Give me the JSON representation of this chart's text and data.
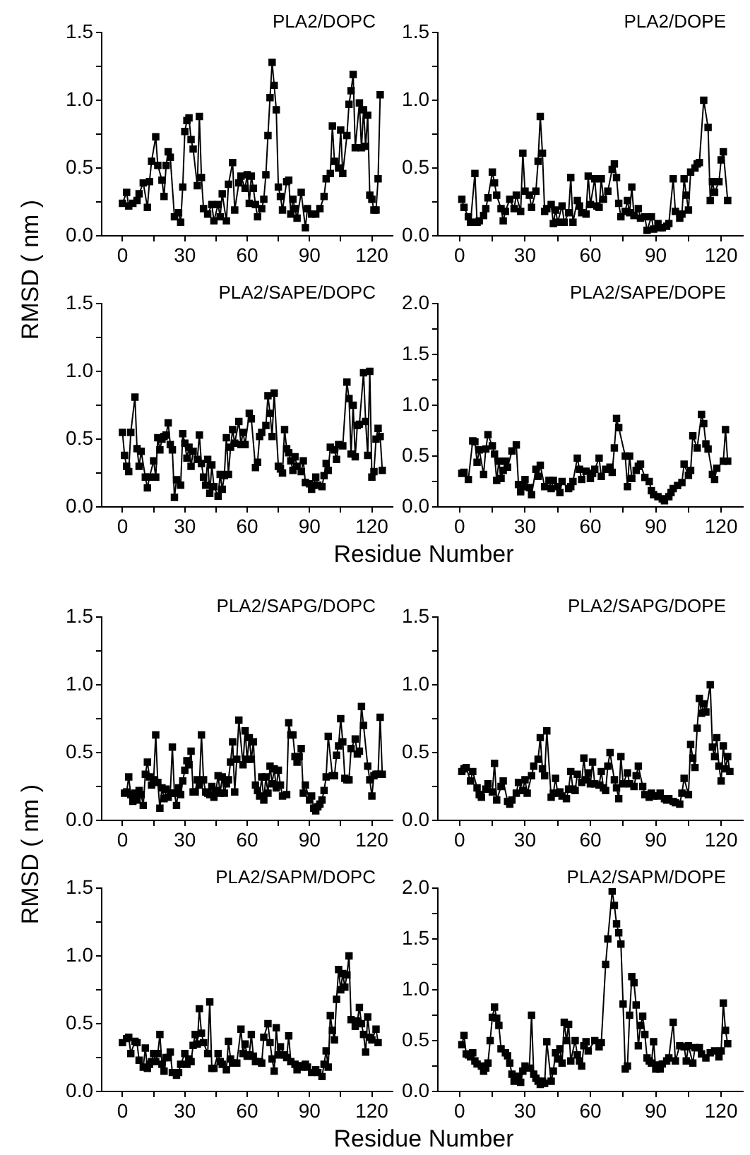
{
  "chart_data": [
    {
      "type": "line",
      "title": "PLA2/DOPC",
      "ylabel": "RMSD ( nm )",
      "color": "#000000",
      "marker": "square",
      "xlim": [
        -10,
        130
      ],
      "ylim": [
        0,
        1.5
      ],
      "xticks": [
        0,
        {
          "value": 15,
          "label": null
        },
        30,
        {
          "value": 45,
          "label": null
        },
        60,
        {
          "value": 75,
          "label": null
        },
        90,
        {
          "value": 105,
          "label": null
        },
        120
      ],
      "yticks": [
        {
          "value": 0,
          "label": "0.0"
        },
        {
          "value": 0.25,
          "label": null
        },
        {
          "value": 0.5,
          "label": "0.5"
        },
        {
          "value": 0.75,
          "label": null
        },
        {
          "value": 1,
          "label": "1.0"
        },
        {
          "value": 1.25,
          "label": null
        },
        {
          "value": 1.5,
          "label": "1.5"
        }
      ],
      "x": [
        0,
        2,
        3,
        5,
        7,
        8,
        10,
        12,
        13,
        14,
        16,
        17,
        19,
        20,
        21,
        22,
        23,
        25,
        27,
        28,
        29,
        30,
        31,
        32,
        33,
        34,
        36,
        37,
        38,
        39,
        41,
        43,
        44,
        46,
        47,
        48,
        50,
        51,
        53,
        54,
        56,
        57,
        59,
        60,
        61,
        62,
        63,
        64,
        65,
        67,
        68,
        69,
        70,
        71,
        72,
        73,
        74,
        75,
        76,
        77,
        79,
        80,
        81,
        82,
        83,
        84,
        86,
        88,
        89,
        91,
        93,
        95,
        97,
        98,
        100,
        101,
        102,
        104,
        105,
        106,
        108,
        109,
        110,
        111,
        112,
        114,
        115,
        116,
        117,
        118,
        119,
        120,
        121,
        122,
        123,
        124
      ],
      "values": [
        0.24,
        0.32,
        0.22,
        0.24,
        0.26,
        0.31,
        0.39,
        0.21,
        0.4,
        0.55,
        0.73,
        0.52,
        0.41,
        0.29,
        0.52,
        0.62,
        0.58,
        0.14,
        0.17,
        0.1,
        0.36,
        0.77,
        0.85,
        0.87,
        0.71,
        0.64,
        0.37,
        0.88,
        0.43,
        0.2,
        0.16,
        0.23,
        0.11,
        0.23,
        0.14,
        0.31,
        0.11,
        0.38,
        0.54,
        0.19,
        0.39,
        0.44,
        0.35,
        0.45,
        0.24,
        0.44,
        0.35,
        0.23,
        0.14,
        0.2,
        0.27,
        0.45,
        0.74,
        1.02,
        1.28,
        1.11,
        0.93,
        0.36,
        0.29,
        0.19,
        0.4,
        0.41,
        0.16,
        0.27,
        0.2,
        0.13,
        0.32,
        0.06,
        0.2,
        0.16,
        0.16,
        0.2,
        0.29,
        0.42,
        0.46,
        0.81,
        0.55,
        0.5,
        0.78,
        0.46,
        0.74,
        0.97,
        1.07,
        1.19,
        0.65,
        0.98,
        0.65,
        0.93,
        0.66,
        0.89,
        0.3,
        0.27,
        0.19,
        0.19,
        0.42,
        1.04
      ]
    },
    {
      "type": "line",
      "title": "PLA2/DOPE",
      "color": "#000000",
      "marker": "square",
      "xlim": [
        -10,
        130
      ],
      "ylim": [
        0,
        1.5
      ],
      "xticks": [
        0,
        {
          "value": 15,
          "label": null
        },
        30,
        {
          "value": 45,
          "label": null
        },
        60,
        {
          "value": 75,
          "label": null
        },
        90,
        {
          "value": 105,
          "label": null
        },
        120
      ],
      "yticks": [
        {
          "value": 0,
          "label": "0.0"
        },
        {
          "value": 0.25,
          "label": null
        },
        {
          "value": 0.5,
          "label": "0.5"
        },
        {
          "value": 0.75,
          "label": null
        },
        {
          "value": 1,
          "label": "1.0"
        },
        {
          "value": 1.25,
          "label": null
        },
        {
          "value": 1.5,
          "label": "1.5"
        }
      ],
      "x": [
        1,
        2,
        4,
        5,
        7,
        8,
        9,
        11,
        12,
        13,
        15,
        16,
        17,
        19,
        20,
        21,
        23,
        25,
        26,
        28,
        29,
        30,
        32,
        33,
        35,
        36,
        37,
        38,
        39,
        40,
        42,
        43,
        44,
        45,
        47,
        48,
        50,
        51,
        52,
        54,
        55,
        56,
        58,
        59,
        60,
        62,
        63,
        64,
        65,
        66,
        68,
        70,
        71,
        72,
        73,
        74,
        76,
        77,
        78,
        79,
        80,
        82,
        83,
        85,
        86,
        88,
        89,
        91,
        92,
        93,
        95,
        96,
        98,
        99,
        101,
        102,
        103,
        104,
        105,
        106,
        108,
        109,
        110,
        112,
        114,
        115,
        116,
        117,
        119,
        120,
        121,
        123
      ],
      "values": [
        0.27,
        0.21,
        0.14,
        0.1,
        0.46,
        0.1,
        0.11,
        0.15,
        0.2,
        0.28,
        0.47,
        0.39,
        0.3,
        0.2,
        0.11,
        0.18,
        0.27,
        0.2,
        0.3,
        0.18,
        0.61,
        0.33,
        0.3,
        0.21,
        0.33,
        0.55,
        0.88,
        0.61,
        0.18,
        0.2,
        0.23,
        0.09,
        0.19,
        0.1,
        0.22,
        0.1,
        0.17,
        0.43,
        0.1,
        0.26,
        0.22,
        0.17,
        0.16,
        0.44,
        0.23,
        0.42,
        0.22,
        0.21,
        0.42,
        0.27,
        0.33,
        0.49,
        0.53,
        0.43,
        0.24,
        0.14,
        0.18,
        0.26,
        0.17,
        0.36,
        0.15,
        0.2,
        0.13,
        0.14,
        0.04,
        0.14,
        0.05,
        0.09,
        0.06,
        0.06,
        0.07,
        0.09,
        0.42,
        0.18,
        0.13,
        0.16,
        0.42,
        0.3,
        0.19,
        0.47,
        0.5,
        0.53,
        0.54,
        1.0,
        0.8,
        0.26,
        0.4,
        0.32,
        0.4,
        0.56,
        0.62,
        0.26
      ]
    },
    {
      "type": "line",
      "title": "PLA2/SAPE/DOPC",
      "xlabel": "Residue Number",
      "color": "#000000",
      "marker": "square",
      "xlim": [
        -10,
        130
      ],
      "ylim": [
        0,
        1.5
      ],
      "xticks": [
        0,
        {
          "value": 15,
          "label": null
        },
        30,
        {
          "value": 45,
          "label": null
        },
        60,
        {
          "value": 75,
          "label": null
        },
        90,
        {
          "value": 105,
          "label": null
        },
        120
      ],
      "yticks": [
        {
          "value": 0,
          "label": "0.0"
        },
        {
          "value": 0.25,
          "label": null
        },
        {
          "value": 0.5,
          "label": "0.5"
        },
        {
          "value": 0.75,
          "label": null
        },
        {
          "value": 1,
          "label": "1.0"
        },
        {
          "value": 1.25,
          "label": null
        },
        {
          "value": 1.5,
          "label": "1.5"
        }
      ],
      "x": [
        0,
        1,
        2,
        3,
        4,
        6,
        7,
        8,
        9,
        11,
        12,
        13,
        15,
        16,
        17,
        18,
        19,
        20,
        21,
        22,
        23,
        24,
        25,
        26,
        28,
        29,
        30,
        31,
        32,
        33,
        34,
        36,
        37,
        38,
        39,
        40,
        41,
        42,
        43,
        44,
        46,
        47,
        48,
        49,
        50,
        51,
        52,
        53,
        54,
        56,
        57,
        58,
        59,
        61,
        62,
        64,
        65,
        66,
        67,
        69,
        70,
        71,
        72,
        73,
        75,
        76,
        77,
        78,
        79,
        80,
        81,
        82,
        83,
        84,
        86,
        87,
        88,
        90,
        91,
        92,
        93,
        94,
        96,
        97,
        98,
        99,
        100,
        102,
        103,
        104,
        106,
        108,
        109,
        110,
        111,
        112,
        113,
        114,
        116,
        117,
        118,
        119,
        120,
        121,
        122,
        123,
        124,
        125
      ],
      "values": [
        0.55,
        0.38,
        0.3,
        0.26,
        0.55,
        0.81,
        0.43,
        0.3,
        0.41,
        0.22,
        0.14,
        0.22,
        0.34,
        0.22,
        0.51,
        0.42,
        0.5,
        0.52,
        0.53,
        0.62,
        0.46,
        0.42,
        0.07,
        0.2,
        0.16,
        0.54,
        0.47,
        0.36,
        0.44,
        0.3,
        0.41,
        0.35,
        0.53,
        0.32,
        0.22,
        0.16,
        0.35,
        0.1,
        0.31,
        0.15,
        0.08,
        0.24,
        0.13,
        0.23,
        0.51,
        0.24,
        0.44,
        0.57,
        0.47,
        0.63,
        0.46,
        0.55,
        0.46,
        0.69,
        0.65,
        0.29,
        0.33,
        0.52,
        0.55,
        0.6,
        0.82,
        0.69,
        0.52,
        0.84,
        0.3,
        0.28,
        0.25,
        0.57,
        0.43,
        0.4,
        0.34,
        0.27,
        0.37,
        0.3,
        0.26,
        0.34,
        0.18,
        0.17,
        0.13,
        0.16,
        0.22,
        0.16,
        0.15,
        0.23,
        0.32,
        0.27,
        0.44,
        0.42,
        0.35,
        0.46,
        0.45,
        0.92,
        0.8,
        0.39,
        0.75,
        0.37,
        0.6,
        0.61,
        0.99,
        0.63,
        0.38,
        1.0,
        0.22,
        0.26,
        0.5,
        0.58,
        0.52,
        0.27
      ]
    },
    {
      "type": "line",
      "title": "PLA2/SAPE/DOPE",
      "color": "#000000",
      "marker": "square",
      "xlim": [
        -10,
        130
      ],
      "ylim": [
        0,
        2
      ],
      "xticks": [
        0,
        {
          "value": 15,
          "label": null
        },
        30,
        {
          "value": 45,
          "label": null
        },
        60,
        {
          "value": 75,
          "label": null
        },
        90,
        {
          "value": 105,
          "label": null
        },
        120
      ],
      "yticks": [
        {
          "value": 0,
          "label": "0.0"
        },
        {
          "value": 0.25,
          "label": null
        },
        {
          "value": 0.5,
          "label": "0.5"
        },
        {
          "value": 0.75,
          "label": null
        },
        {
          "value": 1,
          "label": "1.0"
        },
        {
          "value": 1.25,
          "label": null
        },
        {
          "value": 1.5,
          "label": "1.5"
        },
        {
          "value": 1.75,
          "label": null
        },
        {
          "value": 2,
          "label": "2.0"
        }
      ],
      "x": [
        1,
        2,
        4,
        6,
        7,
        8,
        9,
        11,
        12,
        13,
        15,
        16,
        17,
        18,
        19,
        20,
        21,
        22,
        24,
        26,
        27,
        28,
        29,
        30,
        32,
        33,
        35,
        36,
        37,
        39,
        41,
        42,
        43,
        45,
        46,
        47,
        50,
        51,
        52,
        54,
        55,
        56,
        58,
        60,
        61,
        62,
        64,
        65,
        67,
        69,
        70,
        71,
        72,
        73,
        76,
        77,
        78,
        79,
        81,
        82,
        83,
        85,
        87,
        88,
        89,
        91,
        93,
        94,
        96,
        97,
        98,
        100,
        102,
        103,
        105,
        106,
        107,
        109,
        111,
        112,
        113,
        114,
        116,
        117,
        118,
        121,
        122,
        123
      ],
      "values": [
        0.33,
        0.34,
        0.27,
        0.65,
        0.64,
        0.44,
        0.56,
        0.32,
        0.57,
        0.71,
        0.6,
        0.52,
        0.26,
        0.45,
        0.28,
        0.36,
        0.45,
        0.39,
        0.55,
        0.61,
        0.22,
        0.15,
        0.2,
        0.27,
        0.19,
        0.12,
        0.37,
        0.3,
        0.41,
        0.2,
        0.26,
        0.18,
        0.26,
        0.2,
        0.14,
        0.25,
        0.18,
        0.2,
        0.25,
        0.48,
        0.37,
        0.27,
        0.35,
        0.28,
        0.33,
        0.37,
        0.48,
        0.3,
        0.37,
        0.39,
        0.34,
        0.58,
        0.87,
        0.78,
        0.5,
        0.2,
        0.5,
        0.28,
        0.36,
        0.4,
        0.42,
        0.29,
        0.25,
        0.16,
        0.12,
        0.1,
        0.08,
        0.06,
        0.1,
        0.14,
        0.18,
        0.21,
        0.24,
        0.42,
        0.31,
        0.36,
        0.7,
        0.58,
        0.91,
        0.82,
        0.62,
        0.57,
        0.32,
        0.27,
        0.38,
        0.45,
        0.76,
        0.45
      ]
    },
    {
      "type": "line",
      "title": "PLA2/SAPG/DOPC",
      "ylabel": "RMSD ( nm )",
      "color": "#000000",
      "marker": "square",
      "xlim": [
        -10,
        130
      ],
      "ylim": [
        0,
        1.5
      ],
      "xticks": [
        0,
        {
          "value": 15,
          "label": null
        },
        30,
        {
          "value": 45,
          "label": null
        },
        60,
        {
          "value": 75,
          "label": null
        },
        90,
        {
          "value": 105,
          "label": null
        },
        120
      ],
      "yticks": [
        {
          "value": 0,
          "label": "0.0"
        },
        {
          "value": 0.25,
          "label": null
        },
        {
          "value": 0.5,
          "label": "0.5"
        },
        {
          "value": 0.75,
          "label": null
        },
        {
          "value": 1,
          "label": "1.0"
        },
        {
          "value": 1.25,
          "label": null
        },
        {
          "value": 1.5,
          "label": "1.5"
        }
      ],
      "x": [
        1,
        2,
        3,
        4,
        5,
        6,
        7,
        8,
        9,
        10,
        11,
        12,
        13,
        14,
        15,
        16,
        17,
        18,
        19,
        20,
        21,
        22,
        23,
        24,
        25,
        26,
        27,
        28,
        29,
        30,
        31,
        32,
        33,
        34,
        35,
        36,
        37,
        38,
        39,
        40,
        41,
        42,
        43,
        44,
        45,
        46,
        47,
        48,
        49,
        50,
        51,
        52,
        53,
        54,
        55,
        56,
        58,
        59,
        60,
        61,
        62,
        63,
        64,
        65,
        66,
        67,
        68,
        69,
        70,
        71,
        72,
        73,
        74,
        75,
        76,
        77,
        79,
        80,
        81,
        82,
        83,
        84,
        85,
        86,
        87,
        88,
        90,
        91,
        92,
        93,
        94,
        95,
        96,
        97,
        98,
        99,
        101,
        102,
        103,
        104,
        105,
        106,
        107,
        108,
        109,
        110,
        112,
        113,
        114,
        115,
        116,
        118,
        119,
        120,
        121,
        122,
        123,
        124,
        125
      ],
      "values": [
        0.2,
        0.21,
        0.32,
        0.19,
        0.14,
        0.2,
        0.15,
        0.22,
        0.19,
        0.11,
        0.34,
        0.43,
        0.32,
        0.26,
        0.3,
        0.63,
        0.28,
        0.09,
        0.24,
        0.16,
        0.23,
        0.17,
        0.2,
        0.54,
        0.2,
        0.11,
        0.24,
        0.19,
        0.29,
        0.37,
        0.44,
        0.41,
        0.51,
        0.21,
        0.21,
        0.3,
        0.26,
        0.63,
        0.3,
        0.21,
        0.2,
        0.19,
        0.25,
        0.17,
        0.22,
        0.33,
        0.2,
        0.32,
        0.2,
        0.27,
        0.3,
        0.43,
        0.58,
        0.21,
        0.45,
        0.74,
        0.41,
        0.66,
        0.45,
        0.61,
        0.45,
        0.58,
        0.26,
        0.22,
        0.18,
        0.32,
        0.15,
        0.32,
        0.2,
        0.4,
        0.27,
        0.38,
        0.24,
        0.37,
        0.26,
        0.18,
        0.19,
        0.72,
        0.63,
        0.63,
        0.47,
        0.43,
        0.47,
        0.53,
        0.2,
        0.26,
        0.15,
        0.18,
        0.09,
        0.07,
        0.1,
        0.12,
        0.15,
        0.22,
        0.32,
        0.62,
        0.33,
        0.33,
        0.48,
        0.55,
        0.75,
        0.58,
        0.31,
        0.3,
        0.3,
        0.53,
        0.6,
        0.49,
        0.51,
        0.84,
        0.7,
        0.4,
        0.3,
        0.18,
        0.33,
        0.34,
        0.34,
        0.76,
        0.34
      ]
    },
    {
      "type": "line",
      "title": "PLA2/SAPG/DOPE",
      "color": "#000000",
      "marker": "square",
      "xlim": [
        -10,
        130
      ],
      "ylim": [
        0,
        1.5
      ],
      "xticks": [
        0,
        {
          "value": 15,
          "label": null
        },
        30,
        {
          "value": 45,
          "label": null
        },
        60,
        {
          "value": 75,
          "label": null
        },
        90,
        {
          "value": 105,
          "label": null
        },
        120
      ],
      "yticks": [
        {
          "value": 0,
          "label": "0.0"
        },
        {
          "value": 0.25,
          "label": null
        },
        {
          "value": 0.5,
          "label": "0.5"
        },
        {
          "value": 0.75,
          "label": null
        },
        {
          "value": 1,
          "label": "1.0"
        },
        {
          "value": 1.25,
          "label": null
        },
        {
          "value": 1.5,
          "label": "1.5"
        }
      ],
      "x": [
        1,
        2,
        3,
        5,
        6,
        8,
        9,
        10,
        12,
        13,
        15,
        16,
        17,
        19,
        20,
        22,
        23,
        24,
        26,
        27,
        29,
        30,
        31,
        33,
        34,
        36,
        37,
        38,
        39,
        40,
        42,
        43,
        44,
        45,
        46,
        47,
        49,
        50,
        51,
        52,
        53,
        54,
        56,
        57,
        58,
        59,
        60,
        61,
        62,
        64,
        65,
        66,
        67,
        68,
        69,
        71,
        72,
        73,
        74,
        75,
        77,
        78,
        80,
        81,
        82,
        84,
        85,
        87,
        88,
        89,
        91,
        92,
        94,
        95,
        96,
        98,
        99,
        101,
        102,
        103,
        105,
        106,
        107,
        108,
        109,
        110,
        111,
        112,
        113,
        115,
        116,
        117,
        118,
        119,
        120,
        121,
        122,
        123,
        124
      ],
      "values": [
        0.36,
        0.38,
        0.39,
        0.29,
        0.36,
        0.24,
        0.19,
        0.17,
        0.23,
        0.27,
        0.21,
        0.42,
        0.15,
        0.25,
        0.29,
        0.14,
        0.12,
        0.15,
        0.2,
        0.28,
        0.22,
        0.3,
        0.2,
        0.33,
        0.4,
        0.45,
        0.61,
        0.38,
        0.33,
        0.66,
        0.17,
        0.2,
        0.31,
        0.2,
        0.21,
        0.18,
        0.16,
        0.23,
        0.36,
        0.23,
        0.22,
        0.34,
        0.28,
        0.46,
        0.3,
        0.35,
        0.27,
        0.43,
        0.27,
        0.26,
        0.36,
        0.24,
        0.22,
        0.4,
        0.5,
        0.3,
        0.24,
        0.16,
        0.47,
        0.27,
        0.35,
        0.27,
        0.25,
        0.33,
        0.4,
        0.25,
        0.19,
        0.17,
        0.2,
        0.18,
        0.18,
        0.2,
        0.16,
        0.15,
        0.16,
        0.14,
        0.13,
        0.12,
        0.2,
        0.31,
        0.19,
        0.56,
        0.46,
        0.39,
        0.68,
        0.9,
        0.79,
        0.86,
        0.8,
        1.0,
        0.54,
        0.47,
        0.61,
        0.4,
        0.29,
        0.55,
        0.38,
        0.47,
        0.36
      ]
    },
    {
      "type": "line",
      "title": "PLA2/SAPM/DOPC",
      "xlabel": "Residue Number",
      "color": "#000000",
      "marker": "square",
      "xlim": [
        -10,
        130
      ],
      "ylim": [
        0,
        1.5
      ],
      "xticks": [
        0,
        {
          "value": 15,
          "label": null
        },
        30,
        {
          "value": 45,
          "label": null
        },
        60,
        {
          "value": 75,
          "label": null
        },
        90,
        {
          "value": 105,
          "label": null
        },
        120
      ],
      "yticks": [
        {
          "value": 0,
          "label": "0.0"
        },
        {
          "value": 0.25,
          "label": null
        },
        {
          "value": 0.5,
          "label": "0.5"
        },
        {
          "value": 0.75,
          "label": null
        },
        {
          "value": 1,
          "label": "1.0"
        },
        {
          "value": 1.25,
          "label": null
        },
        {
          "value": 1.5,
          "label": "1.5"
        }
      ],
      "x": [
        0,
        2,
        3,
        4,
        6,
        7,
        8,
        10,
        11,
        12,
        13,
        14,
        15,
        16,
        17,
        18,
        19,
        20,
        21,
        22,
        23,
        24,
        26,
        27,
        28,
        30,
        31,
        32,
        33,
        34,
        35,
        36,
        37,
        38,
        39,
        41,
        42,
        43,
        44,
        46,
        47,
        48,
        50,
        51,
        52,
        53,
        55,
        57,
        58,
        59,
        60,
        61,
        62,
        63,
        64,
        66,
        67,
        68,
        70,
        71,
        72,
        73,
        74,
        75,
        76,
        78,
        79,
        80,
        81,
        83,
        84,
        85,
        86,
        88,
        89,
        91,
        93,
        94,
        96,
        97,
        98,
        99,
        100,
        101,
        102,
        103,
        104,
        105,
        106,
        107,
        108,
        109,
        110,
        112,
        113,
        114,
        115,
        116,
        117,
        118,
        119,
        120,
        122,
        123
      ],
      "values": [
        0.36,
        0.39,
        0.4,
        0.28,
        0.37,
        0.36,
        0.23,
        0.18,
        0.32,
        0.17,
        0.2,
        0.22,
        0.28,
        0.22,
        0.28,
        0.42,
        0.2,
        0.15,
        0.25,
        0.25,
        0.29,
        0.14,
        0.12,
        0.14,
        0.2,
        0.28,
        0.2,
        0.24,
        0.22,
        0.34,
        0.42,
        0.35,
        0.61,
        0.43,
        0.36,
        0.28,
        0.66,
        0.17,
        0.17,
        0.28,
        0.22,
        0.2,
        0.16,
        0.37,
        0.24,
        0.21,
        0.21,
        0.46,
        0.28,
        0.35,
        0.26,
        0.27,
        0.42,
        0.26,
        0.22,
        0.22,
        0.21,
        0.4,
        0.5,
        0.36,
        0.24,
        0.15,
        0.47,
        0.27,
        0.33,
        0.27,
        0.25,
        0.41,
        0.22,
        0.2,
        0.16,
        0.19,
        0.18,
        0.2,
        0.18,
        0.14,
        0.16,
        0.14,
        0.11,
        0.2,
        0.3,
        0.18,
        0.56,
        0.45,
        0.38,
        0.68,
        0.9,
        0.75,
        0.87,
        0.77,
        0.86,
        1.0,
        0.53,
        0.48,
        0.52,
        0.62,
        0.5,
        0.42,
        0.29,
        0.55,
        0.4,
        0.38,
        0.46,
        0.36
      ]
    },
    {
      "type": "line",
      "title": "PLA2/SAPM/DOPE",
      "color": "#000000",
      "marker": "square",
      "xlim": [
        -10,
        130
      ],
      "ylim": [
        0,
        2
      ],
      "xticks": [
        0,
        {
          "value": 15,
          "label": null
        },
        30,
        {
          "value": 45,
          "label": null
        },
        60,
        {
          "value": 75,
          "label": null
        },
        90,
        {
          "value": 105,
          "label": null
        },
        120
      ],
      "yticks": [
        {
          "value": 0,
          "label": "0.0"
        },
        {
          "value": 0.25,
          "label": null
        },
        {
          "value": 0.5,
          "label": "0.5"
        },
        {
          "value": 0.75,
          "label": null
        },
        {
          "value": 1,
          "label": "1.0"
        },
        {
          "value": 1.25,
          "label": null
        },
        {
          "value": 1.5,
          "label": "1.5"
        },
        {
          "value": 1.75,
          "label": null
        },
        {
          "value": 2,
          "label": "2.0"
        }
      ],
      "x": [
        1,
        2,
        3,
        4,
        5,
        6,
        7,
        8,
        10,
        11,
        12,
        13,
        14,
        15,
        16,
        17,
        18,
        19,
        21,
        22,
        23,
        24,
        25,
        26,
        27,
        28,
        29,
        30,
        32,
        33,
        34,
        35,
        36,
        37,
        38,
        39,
        40,
        42,
        43,
        44,
        45,
        46,
        47,
        48,
        49,
        50,
        51,
        53,
        54,
        55,
        56,
        57,
        58,
        59,
        62,
        64,
        65,
        67,
        68,
        70,
        71,
        72,
        73,
        74,
        75,
        76,
        77,
        78,
        79,
        80,
        81,
        82,
        83,
        84,
        85,
        86,
        87,
        88,
        89,
        90,
        91,
        92,
        93,
        95,
        96,
        98,
        99,
        101,
        103,
        104,
        105,
        107,
        108,
        110,
        111,
        113,
        115,
        117,
        119,
        120,
        121,
        122,
        123
      ],
      "values": [
        0.46,
        0.55,
        0.37,
        0.36,
        0.34,
        0.38,
        0.3,
        0.27,
        0.25,
        0.2,
        0.23,
        0.28,
        0.5,
        0.73,
        0.83,
        0.72,
        0.65,
        0.42,
        0.38,
        0.35,
        0.28,
        0.17,
        0.1,
        0.12,
        0.15,
        0.09,
        0.2,
        0.25,
        0.23,
        0.75,
        0.17,
        0.13,
        0.1,
        0.07,
        0.1,
        0.08,
        0.49,
        0.1,
        0.2,
        0.38,
        0.32,
        0.42,
        0.28,
        0.68,
        0.5,
        0.66,
        0.3,
        0.5,
        0.36,
        0.3,
        0.25,
        0.45,
        0.49,
        0.4,
        0.5,
        0.44,
        0.48,
        1.25,
        1.5,
        1.97,
        1.83,
        1.65,
        1.56,
        1.45,
        0.86,
        0.22,
        0.25,
        0.75,
        1.13,
        1.07,
        0.85,
        0.45,
        0.65,
        0.74,
        0.56,
        0.33,
        0.3,
        0.28,
        0.49,
        0.22,
        0.26,
        0.22,
        0.27,
        0.3,
        0.33,
        0.68,
        0.3,
        0.45,
        0.44,
        0.3,
        0.45,
        0.28,
        0.43,
        0.43,
        0.37,
        0.33,
        0.38,
        0.4,
        0.34,
        0.4,
        0.87,
        0.6,
        0.47
      ]
    }
  ]
}
